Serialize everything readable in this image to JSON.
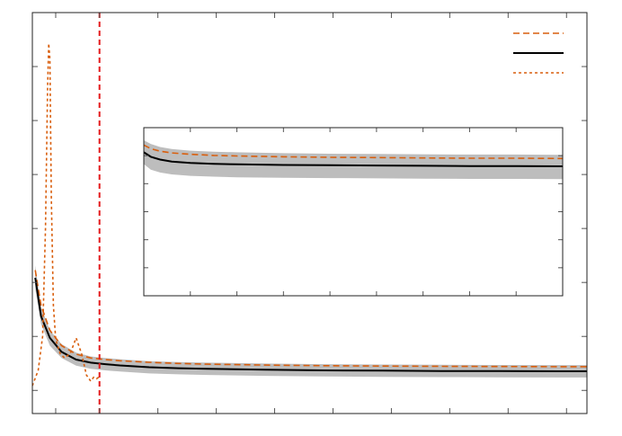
{
  "chart_data": [
    {
      "type": "line",
      "panel": "main",
      "title": "",
      "xlabel": "",
      "ylabel": "",
      "xlim": [
        0,
        19
      ],
      "ylim": [
        0,
        26
      ],
      "xticks": [
        0.8,
        2.3,
        4.3,
        6.3,
        8.3,
        10.3,
        12.3,
        14.3,
        16.3,
        18.3
      ],
      "yticks": [
        1.5,
        5,
        8.5,
        12,
        15.5,
        19,
        22.5
      ],
      "grid": false,
      "legend": "top-right",
      "colors": {
        "series_dashed": "#d95f0e",
        "series_solid": "#000000",
        "series_dotted": "#d95f0e",
        "band": "#bdbdbd",
        "vline": "#e41a1c"
      },
      "vline_x": 2.3,
      "series": [
        {
          "style": "dashed",
          "x": [
            0.1,
            0.3,
            0.6,
            1.0,
            1.5,
            2.0,
            2.5,
            3.0,
            4.0,
            5.0,
            6.0,
            8.0,
            10.0,
            12.0,
            14.0,
            16.0,
            18.0,
            19.0
          ],
          "y": [
            9.3,
            7.0,
            5.4,
            4.4,
            3.85,
            3.6,
            3.5,
            3.42,
            3.32,
            3.25,
            3.2,
            3.14,
            3.1,
            3.08,
            3.06,
            3.05,
            3.04,
            3.04
          ]
        },
        {
          "style": "solid",
          "x": [
            0.1,
            0.3,
            0.6,
            1.0,
            1.5,
            2.0,
            2.5,
            3.0,
            4.0,
            5.0,
            6.0,
            8.0,
            10.0,
            12.0,
            14.0,
            16.0,
            18.0,
            19.0
          ],
          "y": [
            8.8,
            6.3,
            4.9,
            4.0,
            3.5,
            3.3,
            3.2,
            3.12,
            3.0,
            2.94,
            2.9,
            2.84,
            2.8,
            2.78,
            2.76,
            2.75,
            2.74,
            2.74
          ]
        },
        {
          "style": "dotted",
          "x": [
            0.0,
            0.2,
            0.35,
            0.45,
            0.52,
            0.56,
            0.6,
            0.65,
            0.72,
            0.8,
            0.95,
            1.1,
            1.3,
            1.5,
            1.7,
            1.85,
            2.0,
            2.1,
            2.2,
            2.3
          ],
          "y": [
            1.8,
            2.8,
            5.0,
            12.0,
            21.0,
            24.0,
            23.0,
            14.0,
            7.0,
            4.8,
            3.9,
            3.6,
            3.9,
            4.9,
            3.8,
            2.5,
            2.1,
            2.35,
            2.25,
            2.4
          ]
        }
      ],
      "band": {
        "x": [
          0.1,
          0.3,
          0.6,
          1.0,
          1.5,
          2.0,
          2.5,
          3.0,
          4.0,
          5.0,
          6.0,
          8.0,
          10.0,
          12.0,
          14.0,
          16.0,
          18.0,
          19.0
        ],
        "lower": [
          8.1,
          5.8,
          4.4,
          3.6,
          3.1,
          2.9,
          2.8,
          2.72,
          2.6,
          2.54,
          2.5,
          2.44,
          2.4,
          2.38,
          2.36,
          2.35,
          2.34,
          2.34
        ],
        "upper": [
          9.6,
          6.9,
          5.4,
          4.5,
          3.95,
          3.7,
          3.6,
          3.52,
          3.4,
          3.34,
          3.3,
          3.24,
          3.2,
          3.18,
          3.16,
          3.15,
          3.14,
          3.14
        ]
      }
    },
    {
      "type": "line",
      "panel": "inset",
      "title": "",
      "xlabel": "",
      "ylabel": "",
      "xlim": [
        0,
        18
      ],
      "ylim": [
        0,
        6
      ],
      "xticks": [
        2,
        4,
        6,
        8,
        10,
        12,
        14,
        16
      ],
      "yticks": [
        1,
        2,
        3,
        4,
        5
      ],
      "grid": false,
      "series": [
        {
          "style": "dashed",
          "x": [
            0.0,
            0.3,
            0.7,
            1.2,
            2.0,
            3.0,
            4.0,
            6.0,
            8.0,
            10.0,
            12.0,
            14.0,
            16.0,
            18.0
          ],
          "y": [
            5.38,
            5.25,
            5.16,
            5.1,
            5.05,
            5.01,
            4.99,
            4.96,
            4.94,
            4.93,
            4.92,
            4.91,
            4.91,
            4.9
          ]
        },
        {
          "style": "solid",
          "x": [
            0.0,
            0.3,
            0.7,
            1.2,
            2.0,
            3.0,
            4.0,
            6.0,
            8.0,
            10.0,
            12.0,
            14.0,
            16.0,
            18.0
          ],
          "y": [
            5.12,
            4.96,
            4.86,
            4.79,
            4.74,
            4.71,
            4.69,
            4.67,
            4.66,
            4.65,
            4.64,
            4.63,
            4.63,
            4.62
          ]
        }
      ],
      "band": {
        "x": [
          0.0,
          0.3,
          0.7,
          1.2,
          2.0,
          3.0,
          4.0,
          6.0,
          8.0,
          10.0,
          12.0,
          14.0,
          16.0,
          18.0
        ],
        "lower": [
          4.7,
          4.5,
          4.4,
          4.33,
          4.28,
          4.25,
          4.23,
          4.21,
          4.2,
          4.19,
          4.18,
          4.17,
          4.17,
          4.16
        ],
        "upper": [
          5.55,
          5.42,
          5.31,
          5.24,
          5.18,
          5.14,
          5.12,
          5.09,
          5.07,
          5.06,
          5.05,
          5.04,
          5.04,
          5.03
        ]
      }
    }
  ]
}
